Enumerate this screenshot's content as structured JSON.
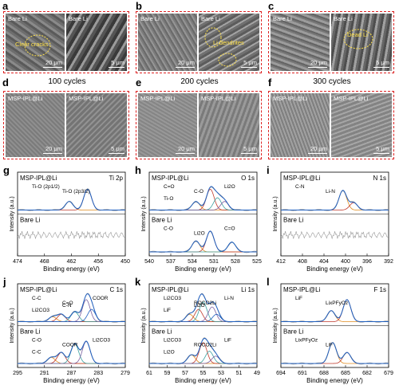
{
  "panels": {
    "a": {
      "letter": "a",
      "left_label": "Bare Li",
      "right_label": "Bare Li",
      "annotation": "Clear cracks",
      "scale_left": "20 μm",
      "scale_right": "5 μm"
    },
    "b": {
      "letter": "b",
      "left_label": "Bare Li",
      "right_label": "Bare Li",
      "annotation": "Li dendrites",
      "scale_left": "20 μm",
      "scale_right": "5 μm"
    },
    "c": {
      "letter": "c",
      "left_label": "Bare Li",
      "right_label": "Bare Li",
      "annotation": "Dead Li",
      "scale_left": "20 μm",
      "scale_right": "5 μm"
    },
    "d": {
      "letter": "d",
      "left_label": "MSP-IPL@Li",
      "right_label": "MSP-IPL@Li",
      "scale_left": "20 μm",
      "scale_right": "5 μm"
    },
    "e": {
      "letter": "e",
      "left_label": "MSP-IPL@Li",
      "right_label": "MSP-IPL@Li",
      "scale_left": "20 μm",
      "scale_right": "5 μm"
    },
    "f": {
      "letter": "f",
      "left_label": "MSP-IPL@Li",
      "right_label": "MSP-IPL@Li",
      "scale_left": "20 μm",
      "scale_right": "5 μm"
    }
  },
  "cycles": {
    "c100": "100 cycles",
    "c200": "200 cycles",
    "c300": "300 cycles"
  },
  "xps": {
    "ylabel": "Intensity (a.u.)",
    "xlabel": "Binding energy (eV)",
    "top_label": "MSP-IPL@Li",
    "bottom_label": "Bare Li"
  },
  "chart_data": [
    {
      "panel": "g",
      "type": "line",
      "title": "Ti 2p",
      "xlim": [
        474,
        450
      ],
      "xticks": [
        "474",
        "468",
        "462",
        "456",
        "450"
      ],
      "top_annotations": [
        "Ti-O (2p1/2)",
        "Ti-O (2p3/2)"
      ],
      "bottom_annotations": [],
      "top_peaks": [
        {
          "center": 462.5,
          "height": 0.35
        },
        {
          "center": 458.4,
          "height": 0.85
        }
      ]
    },
    {
      "panel": "h",
      "type": "line",
      "title": "O 1s",
      "xlim": [
        540,
        525
      ],
      "xticks": [
        "540",
        "537",
        "534",
        "531",
        "528",
        "525"
      ],
      "top_annotations": [
        "C=O",
        "C-O",
        "Li2O",
        "Ti-O"
      ],
      "bottom_annotations": [
        "C-O",
        "Li2O",
        "C=O"
      ],
      "top_peaks": [
        {
          "center": 533.5,
          "height": 0.35
        },
        {
          "center": 531.5,
          "height": 0.85
        },
        {
          "center": 530.5,
          "height": 0.5
        },
        {
          "center": 529.5,
          "height": 0.35
        }
      ],
      "bottom_peaks": [
        {
          "center": 533.5,
          "height": 0.45
        },
        {
          "center": 531.5,
          "height": 0.85
        },
        {
          "center": 528.5,
          "height": 0.4
        }
      ]
    },
    {
      "panel": "i",
      "type": "line",
      "title": "N 1s",
      "xlim": [
        412,
        392
      ],
      "xticks": [
        "412",
        "408",
        "404",
        "400",
        "396",
        "392"
      ],
      "top_annotations": [
        "C-N",
        "Li-N"
      ],
      "bottom_annotations": [],
      "top_peaks": [
        {
          "center": 400.5,
          "height": 0.8
        },
        {
          "center": 398.5,
          "height": 0.3
        }
      ]
    },
    {
      "panel": "j",
      "type": "line",
      "title": "C 1s",
      "xlim": [
        295,
        279
      ],
      "xticks": [
        "295",
        "291",
        "287",
        "283",
        "279"
      ],
      "top_annotations": [
        "C-C",
        "C=O",
        "COOR",
        "Li2CO3",
        "C-N"
      ],
      "bottom_annotations": [
        "C-O",
        "COOR",
        "Li2CO3",
        "C-C"
      ],
      "top_peaks": [
        {
          "center": 289.8,
          "height": 0.2
        },
        {
          "center": 288.5,
          "height": 0.3
        },
        {
          "center": 286.5,
          "height": 0.4
        },
        {
          "center": 284.8,
          "height": 0.9
        },
        {
          "center": 284.0,
          "height": 0.5
        }
      ],
      "bottom_peaks": [
        {
          "center": 290.0,
          "height": 0.25
        },
        {
          "center": 288.5,
          "height": 0.45
        },
        {
          "center": 286.5,
          "height": 0.8
        },
        {
          "center": 284.8,
          "height": 0.9
        }
      ]
    },
    {
      "panel": "k",
      "type": "line",
      "title": "Li 1s",
      "xlim": [
        61,
        49
      ],
      "xticks": [
        "61",
        "59",
        "57",
        "55",
        "53",
        "51",
        "49"
      ],
      "top_annotations": [
        "Li2CO3",
        "ROCO2Li",
        "Li-N",
        "LiF",
        "Li2O"
      ],
      "bottom_annotations": [
        "Li2CO3",
        "ROCO2Li",
        "LiF",
        "Li2O"
      ],
      "top_peaks": [
        {
          "center": 56.5,
          "height": 0.3
        },
        {
          "center": 55.5,
          "height": 0.5
        },
        {
          "center": 55.0,
          "height": 0.8
        },
        {
          "center": 54.0,
          "height": 0.6
        },
        {
          "center": 53.5,
          "height": 0.3
        }
      ],
      "bottom_peaks": [
        {
          "center": 56.3,
          "height": 0.35
        },
        {
          "center": 55.0,
          "height": 0.85
        },
        {
          "center": 54.3,
          "height": 0.5
        },
        {
          "center": 53.6,
          "height": 0.3
        }
      ]
    },
    {
      "panel": "l",
      "type": "line",
      "title": "F 1s",
      "xlim": [
        694,
        679
      ],
      "xticks": [
        "694",
        "691",
        "688",
        "685",
        "682",
        "679"
      ],
      "top_annotations": [
        "LiF",
        "LixPFyOz"
      ],
      "bottom_annotations": [
        "LixPFyOz",
        "LiF"
      ],
      "top_peaks": [
        {
          "center": 687.0,
          "height": 0.45
        },
        {
          "center": 684.8,
          "height": 0.9
        }
      ],
      "bottom_peaks": [
        {
          "center": 686.8,
          "height": 0.85
        },
        {
          "center": 684.8,
          "height": 0.45
        }
      ]
    }
  ]
}
